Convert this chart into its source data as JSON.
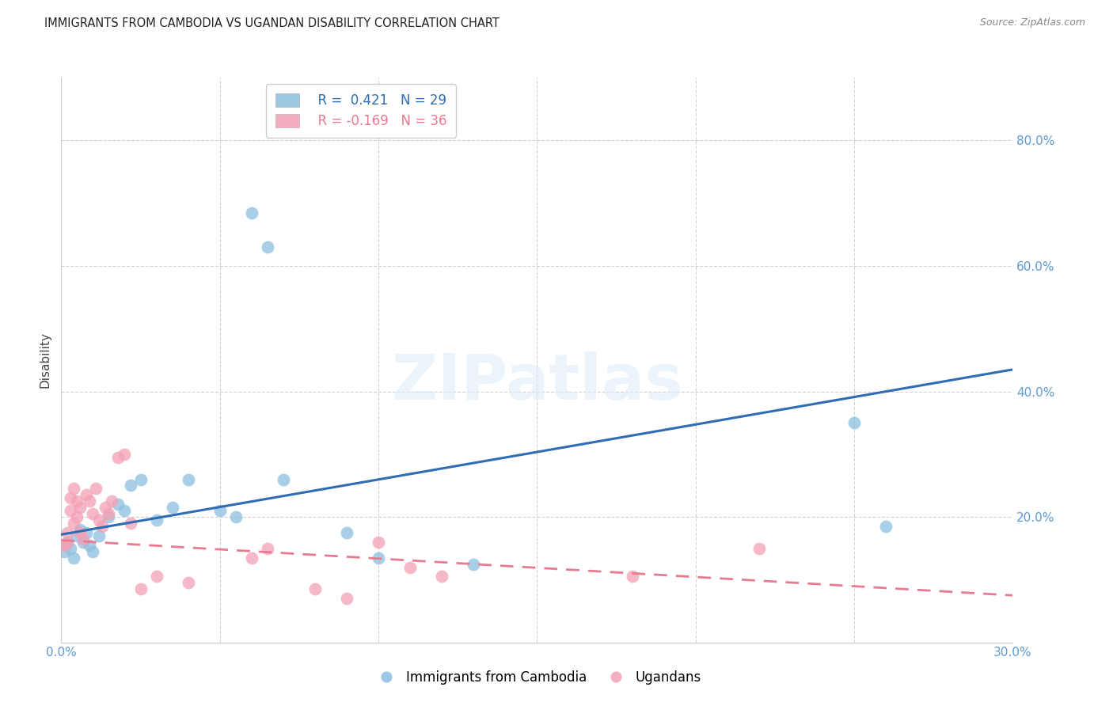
{
  "title": "IMMIGRANTS FROM CAMBODIA VS UGANDAN DISABILITY CORRELATION CHART",
  "source": "Source: ZipAtlas.com",
  "ylabel": "Disability",
  "watermark": "ZIPatlas",
  "xlim": [
    0.0,
    0.3
  ],
  "ylim": [
    0.0,
    0.9
  ],
  "xticks": [
    0.0,
    0.05,
    0.1,
    0.15,
    0.2,
    0.25,
    0.3
  ],
  "xtick_labels": [
    "0.0%",
    "",
    "",
    "",
    "",
    "",
    "30.0%"
  ],
  "yticks": [
    0.0,
    0.2,
    0.4,
    0.6,
    0.8
  ],
  "ytick_labels": [
    "",
    "20.0%",
    "40.0%",
    "60.0%",
    "80.0%"
  ],
  "ytick_color": "#5b9bd5",
  "xtick_color": "#5b9bd5",
  "legend_R1": "R =  0.421",
  "legend_N1": "N = 29",
  "legend_R2": "R = -0.169",
  "legend_N2": "N = 36",
  "blue_color": "#8bbfdf",
  "pink_color": "#f4a0b5",
  "blue_line_color": "#2e6db4",
  "pink_line_color": "#e87a90",
  "grid_color": "#cccccc",
  "background_color": "#ffffff",
  "cambodia_x": [
    0.001,
    0.002,
    0.003,
    0.004,
    0.005,
    0.006,
    0.007,
    0.008,
    0.009,
    0.01,
    0.012,
    0.015,
    0.018,
    0.02,
    0.022,
    0.025,
    0.03,
    0.035,
    0.04,
    0.05,
    0.055,
    0.06,
    0.065,
    0.07,
    0.09,
    0.1,
    0.13,
    0.25,
    0.26
  ],
  "cambodia_y": [
    0.145,
    0.16,
    0.15,
    0.135,
    0.17,
    0.18,
    0.16,
    0.175,
    0.155,
    0.145,
    0.17,
    0.2,
    0.22,
    0.21,
    0.25,
    0.26,
    0.195,
    0.215,
    0.26,
    0.21,
    0.2,
    0.685,
    0.63,
    0.26,
    0.175,
    0.135,
    0.125,
    0.35,
    0.185
  ],
  "ugandan_x": [
    0.001,
    0.002,
    0.002,
    0.003,
    0.003,
    0.004,
    0.004,
    0.005,
    0.005,
    0.006,
    0.006,
    0.007,
    0.008,
    0.009,
    0.01,
    0.011,
    0.012,
    0.013,
    0.014,
    0.015,
    0.016,
    0.018,
    0.02,
    0.022,
    0.025,
    0.03,
    0.04,
    0.06,
    0.065,
    0.08,
    0.09,
    0.1,
    0.11,
    0.12,
    0.18,
    0.22
  ],
  "ugandan_y": [
    0.155,
    0.16,
    0.175,
    0.21,
    0.23,
    0.245,
    0.19,
    0.2,
    0.225,
    0.215,
    0.175,
    0.165,
    0.235,
    0.225,
    0.205,
    0.245,
    0.195,
    0.185,
    0.215,
    0.205,
    0.225,
    0.295,
    0.3,
    0.19,
    0.085,
    0.105,
    0.095,
    0.135,
    0.15,
    0.085,
    0.07,
    0.16,
    0.12,
    0.105,
    0.105,
    0.15
  ],
  "blue_trendline_x": [
    0.0,
    0.3
  ],
  "blue_trendline_y": [
    0.172,
    0.435
  ],
  "pink_trendline_x": [
    0.0,
    0.3
  ],
  "pink_trendline_y": [
    0.163,
    0.075
  ]
}
